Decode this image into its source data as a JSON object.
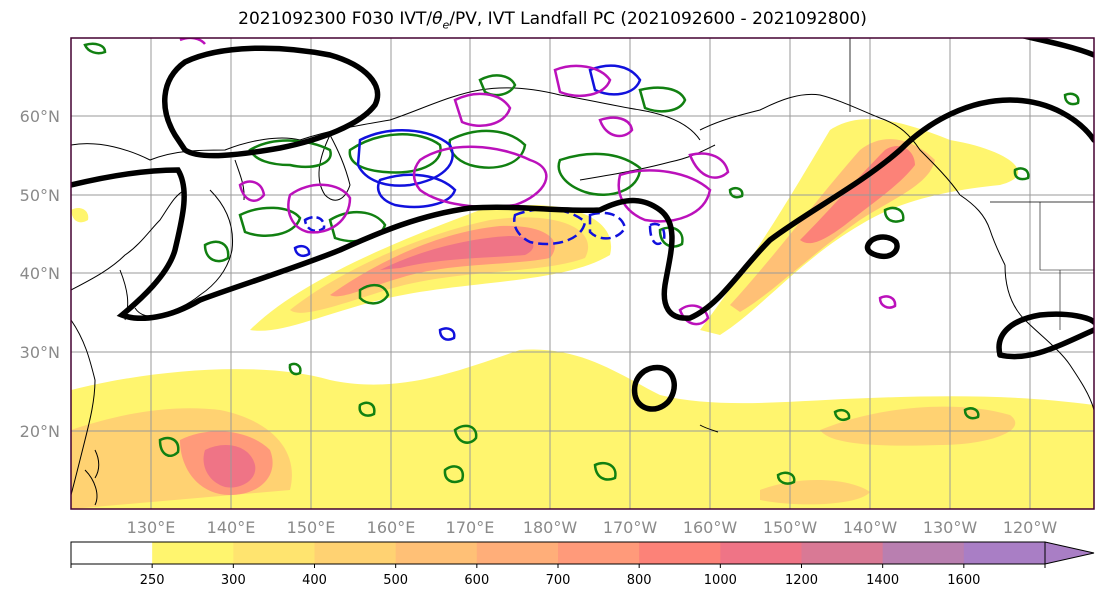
{
  "title": {
    "prefix": "2021092300 F030 IVT/",
    "theta": "θ",
    "theta_sub": "e",
    "suffix": "/PV, IVT Landfall PC (2021092600 - 2021092800)"
  },
  "axes": {
    "lat_labels": [
      "60°N",
      "50°N",
      "40°N",
      "30°N",
      "20°N"
    ],
    "lon_labels": [
      "130°E",
      "140°E",
      "150°E",
      "160°E",
      "170°E",
      "180°W",
      "170°W",
      "160°W",
      "150°W",
      "140°W",
      "130°W",
      "120°W"
    ]
  },
  "colorbar": {
    "levels": [
      "250",
      "300",
      "400",
      "500",
      "600",
      "700",
      "800",
      "1000",
      "1200",
      "1400",
      "1600"
    ],
    "colors": [
      "#ffffff",
      "#fff56e",
      "#ffe46f",
      "#ffd272",
      "#ffc076",
      "#ffae79",
      "#ff9a7a",
      "#fc8278",
      "#ef7486",
      "#d97995",
      "#b97fb0",
      "#a97ec5"
    ]
  },
  "style": {
    "frame_color": "#440030",
    "contour_black": "#000000",
    "contour_green": "#118011",
    "contour_blue": "#1111dd",
    "contour_magenta": "#bb11bb",
    "land_line": "#000000"
  }
}
